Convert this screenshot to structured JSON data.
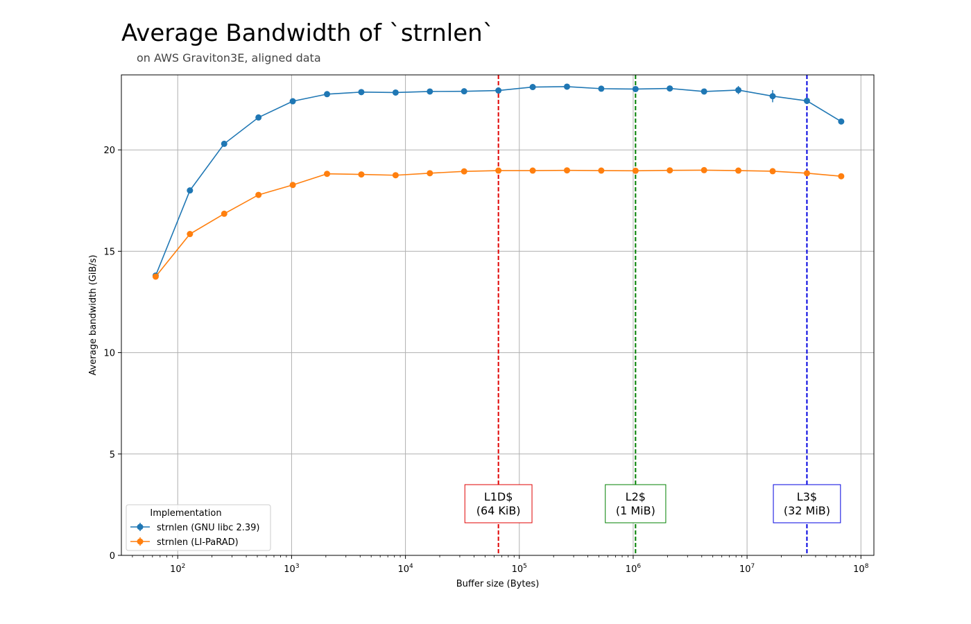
{
  "chart_data": {
    "type": "line",
    "title": "Average Bandwidth of `strnlen`",
    "subtitle": "on AWS Graviton3E, aligned data",
    "xlabel": "Buffer size (Bytes)",
    "ylabel": "Average bandwidth (GiB/s)",
    "xscale": "log",
    "xlim": [
      32,
      130000000
    ],
    "ylim": [
      0,
      23.7
    ],
    "grid": true,
    "x": [
      64,
      128,
      256,
      512,
      1024,
      2048,
      4096,
      8192,
      16384,
      32768,
      65536,
      131072,
      262144,
      524288,
      1048576,
      2097152,
      4194304,
      8388608,
      16777216,
      33554432,
      67108864
    ],
    "series": [
      {
        "name": "strnlen (GNU libc 2.39)",
        "color": "#1f77b4",
        "values": [
          13.8,
          18.0,
          20.3,
          21.6,
          22.4,
          22.75,
          22.85,
          22.83,
          22.88,
          22.89,
          22.93,
          23.1,
          23.12,
          23.02,
          23.0,
          23.03,
          22.88,
          22.95,
          22.65,
          22.42,
          21.4
        ],
        "error": [
          0.05,
          0.05,
          0.05,
          0.05,
          0.05,
          0.05,
          0.05,
          0.05,
          0.05,
          0.05,
          0.05,
          0.05,
          0.05,
          0.05,
          0.1,
          0.05,
          0.05,
          0.2,
          0.3,
          0.05,
          0.05
        ]
      },
      {
        "name": "strnlen (LI-PaRAD)",
        "color": "#ff7f0e",
        "values": [
          13.75,
          15.85,
          16.85,
          17.78,
          18.27,
          18.82,
          18.79,
          18.75,
          18.85,
          18.94,
          18.98,
          18.98,
          18.99,
          18.98,
          18.97,
          18.99,
          19.0,
          18.98,
          18.95,
          18.85,
          18.7
        ],
        "error": [
          0.05,
          0.05,
          0.05,
          0.05,
          0.05,
          0.05,
          0.05,
          0.05,
          0.05,
          0.05,
          0.05,
          0.05,
          0.05,
          0.05,
          0.05,
          0.05,
          0.05,
          0.05,
          0.05,
          0.05,
          0.05
        ]
      }
    ],
    "yticks": [
      0,
      5,
      10,
      15,
      20
    ],
    "xticks": [
      {
        "value": 100,
        "base": "10",
        "exp": "2"
      },
      {
        "value": 1000,
        "base": "10",
        "exp": "3"
      },
      {
        "value": 10000,
        "base": "10",
        "exp": "4"
      },
      {
        "value": 100000,
        "base": "10",
        "exp": "5"
      },
      {
        "value": 1000000,
        "base": "10",
        "exp": "6"
      },
      {
        "value": 10000000,
        "base": "10",
        "exp": "7"
      },
      {
        "value": 100000000,
        "base": "10",
        "exp": "8"
      }
    ],
    "annotations": [
      {
        "x": 65536,
        "color": "#e00000",
        "line1": "L1D$",
        "line2": "(64 KiB)"
      },
      {
        "x": 1048576,
        "color": "#008000",
        "line1": "L2$",
        "line2": "(1 MiB)"
      },
      {
        "x": 33554432,
        "color": "#0000e0",
        "line1": "L3$",
        "line2": "(32 MiB)"
      }
    ],
    "legend": {
      "title": "Implementation",
      "placement": "lower-left"
    }
  }
}
